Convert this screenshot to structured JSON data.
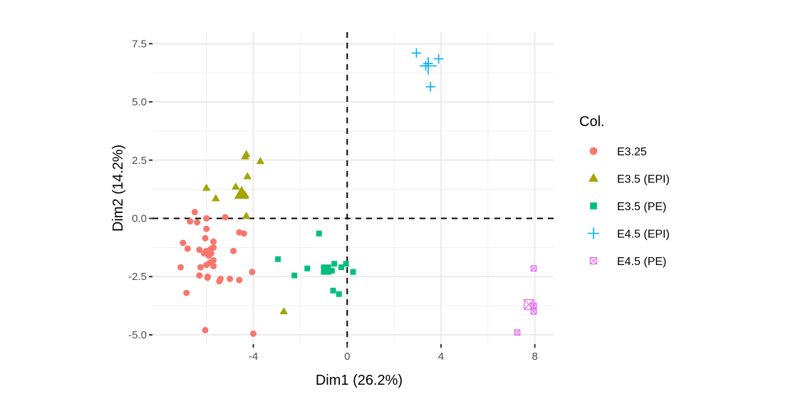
{
  "chart_data": {
    "type": "scatter",
    "title": "",
    "xlabel": "Dim1 (26.2%)",
    "ylabel": "Dim2 (14.2%)",
    "xlim": [
      -8.3,
      8.8
    ],
    "ylim": [
      -5.4,
      8.0
    ],
    "x_ticks": [
      -4,
      0,
      4,
      8
    ],
    "x_tick_labels": [
      "-4",
      "0",
      "4",
      "8"
    ],
    "y_ticks": [
      -5,
      -2.5,
      0,
      2.5,
      5,
      7.5
    ],
    "y_tick_labels": [
      "-5.0",
      "-2.5",
      "0.0",
      "2.5",
      "5.0",
      "7.5"
    ],
    "grid": true,
    "reference_lines": {
      "x": 0,
      "y": 0,
      "style": "dashed"
    },
    "legend": {
      "title": "Col.",
      "position": "right"
    },
    "series": [
      {
        "name": "E3.25",
        "shape": "circle",
        "color": "#F8766D",
        "points": [
          [
            -6.5,
            0.27
          ],
          [
            -6.7,
            -0.13
          ],
          [
            -6.4,
            -0.17
          ],
          [
            -6.0,
            0.0
          ],
          [
            -5.2,
            0.05
          ],
          [
            -6.0,
            -0.45
          ],
          [
            -4.6,
            -0.6
          ],
          [
            -4.4,
            -0.65
          ],
          [
            -6.05,
            -0.85
          ],
          [
            -7.0,
            -1.05
          ],
          [
            -6.8,
            -1.3
          ],
          [
            -6.3,
            -1.35
          ],
          [
            -6.0,
            -1.4
          ],
          [
            -5.8,
            -1.3
          ],
          [
            -5.7,
            -1.0
          ],
          [
            -5.7,
            -1.25
          ],
          [
            -6.1,
            -1.5
          ],
          [
            -5.8,
            -1.5
          ],
          [
            -4.85,
            -1.4
          ],
          [
            -5.9,
            -1.6
          ],
          [
            -5.7,
            -1.8
          ],
          [
            -5.85,
            -1.9
          ],
          [
            -6.0,
            -2.0
          ],
          [
            -5.7,
            -2.05
          ],
          [
            -6.25,
            -2.1
          ],
          [
            -7.1,
            -2.1
          ],
          [
            -6.3,
            -2.45
          ],
          [
            -5.95,
            -2.5
          ],
          [
            -5.95,
            -2.55
          ],
          [
            -5.4,
            -2.6
          ],
          [
            -5.45,
            -2.7
          ],
          [
            -5.0,
            -2.6
          ],
          [
            -4.6,
            -2.65
          ],
          [
            -4.05,
            -2.3
          ],
          [
            -6.85,
            -3.2
          ],
          [
            -6.05,
            -4.8
          ],
          [
            -4.0,
            -4.95
          ]
        ]
      },
      {
        "name": "E3.5 (EPI)",
        "shape": "triangle",
        "color": "#A3A500",
        "points": [
          [
            -4.35,
            2.65
          ],
          [
            -4.3,
            2.75
          ],
          [
            -3.7,
            2.45
          ],
          [
            -4.25,
            1.8
          ],
          [
            -6.0,
            1.3
          ],
          [
            -4.75,
            1.35
          ],
          [
            -4.5,
            1.15
          ],
          [
            -4.35,
            1.0
          ],
          [
            -5.6,
            0.85
          ],
          [
            -4.3,
            0.1
          ],
          [
            -2.7,
            -4.0
          ]
        ],
        "centroid": [
          -4.5,
          1.05
        ]
      },
      {
        "name": "E3.5 (PE)",
        "shape": "square",
        "color": "#00BF7D",
        "points": [
          [
            -1.2,
            -0.65
          ],
          [
            -2.95,
            -1.75
          ],
          [
            -1.7,
            -2.15
          ],
          [
            -2.25,
            -2.45
          ],
          [
            -0.55,
            -1.95
          ],
          [
            -0.05,
            -1.95
          ],
          [
            -0.25,
            -2.1
          ],
          [
            -0.65,
            -2.25
          ],
          [
            0.25,
            -2.3
          ],
          [
            -0.6,
            -3.1
          ],
          [
            -0.35,
            -3.25
          ]
        ],
        "centroid": [
          -0.9,
          -2.2
        ]
      },
      {
        "name": "E4.5 (EPI)",
        "shape": "plus",
        "color": "#00B0F6",
        "points": [
          [
            2.95,
            7.1
          ],
          [
            3.9,
            6.85
          ],
          [
            3.45,
            6.65
          ],
          [
            3.35,
            6.55
          ],
          [
            3.55,
            5.65
          ]
        ],
        "centroid": [
          3.45,
          6.55
        ]
      },
      {
        "name": "E4.5 (PE)",
        "shape": "square-cross",
        "color": "#E76BF3",
        "points": [
          [
            7.95,
            -2.15
          ],
          [
            7.95,
            -3.75
          ],
          [
            7.95,
            -4.0
          ],
          [
            7.25,
            -4.9
          ]
        ],
        "centroid": [
          7.75,
          -3.7
        ]
      }
    ]
  }
}
